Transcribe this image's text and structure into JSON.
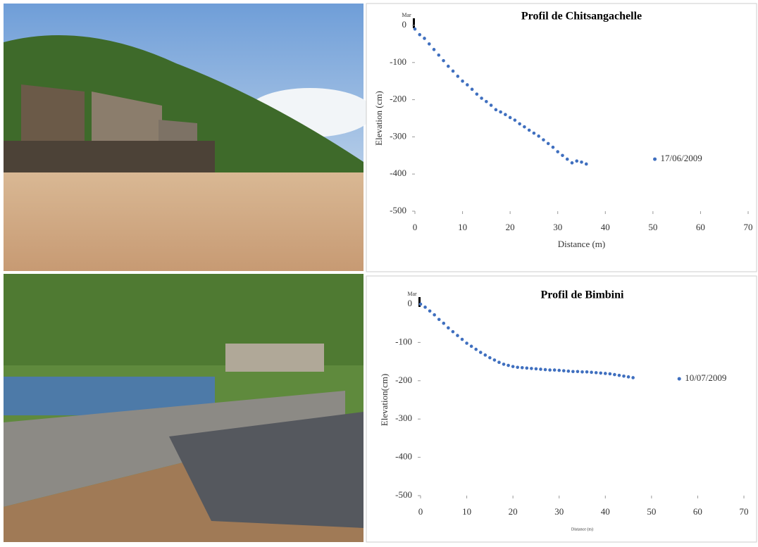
{
  "chart_data": [
    {
      "type": "scatter",
      "title": "Profil de Chitsangachelle",
      "annotation": "Mar",
      "xlabel": "Distance (m)",
      "ylabel": "Elevation (cm)",
      "x": [
        0,
        1,
        2,
        3,
        4,
        5,
        6,
        7,
        8,
        9,
        10,
        11,
        12,
        13,
        14,
        15,
        16,
        17,
        18,
        19,
        20,
        21,
        22,
        23,
        24,
        25,
        26,
        27,
        28,
        29,
        30,
        31,
        32,
        33,
        34,
        35,
        36
      ],
      "series": [
        {
          "name": "17/06/2009",
          "color": "#3f6fbf",
          "values": [
            -10,
            -25,
            -35,
            -50,
            -65,
            -80,
            -95,
            -110,
            -123,
            -137,
            -150,
            -160,
            -172,
            -185,
            -196,
            -205,
            -215,
            -227,
            -233,
            -240,
            -248,
            -255,
            -265,
            -273,
            -282,
            -290,
            -298,
            -308,
            -318,
            -328,
            -340,
            -350,
            -360,
            -370,
            -365,
            -368,
            -373
          ]
        }
      ],
      "xlim": [
        0,
        70
      ],
      "xticks": [
        0,
        10,
        20,
        30,
        40,
        50,
        60,
        70
      ],
      "ylim": [
        -500,
        0
      ],
      "yticks": [
        0,
        -100,
        -200,
        -300,
        -400,
        -500
      ]
    },
    {
      "type": "scatter",
      "title": "Profil de Bimbini",
      "annotation": "Mar",
      "xlabel": "Distance (m)",
      "ylabel": "Elevation(cm)",
      "x": [
        0,
        1,
        2,
        3,
        4,
        5,
        6,
        7,
        8,
        9,
        10,
        11,
        12,
        13,
        14,
        15,
        16,
        17,
        18,
        19,
        20,
        21,
        22,
        23,
        24,
        25,
        26,
        27,
        28,
        29,
        30,
        31,
        32,
        33,
        34,
        35,
        36,
        37,
        38,
        39,
        40,
        41,
        42,
        43,
        44,
        45,
        46
      ],
      "series": [
        {
          "name": "10/07/2009",
          "color": "#3f6fbf",
          "values": [
            0,
            -8,
            -18,
            -28,
            -40,
            -50,
            -62,
            -72,
            -82,
            -92,
            -102,
            -110,
            -118,
            -126,
            -133,
            -140,
            -146,
            -152,
            -157,
            -160,
            -163,
            -165,
            -166,
            -167,
            -168,
            -169,
            -170,
            -171,
            -172,
            -172,
            -173,
            -174,
            -175,
            -176,
            -176,
            -177,
            -177,
            -178,
            -179,
            -180,
            -181,
            -182,
            -184,
            -186,
            -188,
            -190,
            -192
          ]
        }
      ],
      "xlim": [
        0,
        70
      ],
      "xticks": [
        0,
        10,
        20,
        30,
        40,
        50,
        60,
        70
      ],
      "ylim": [
        -500,
        0
      ],
      "yticks": [
        0,
        -100,
        -200,
        -300,
        -400,
        -500
      ]
    }
  ]
}
